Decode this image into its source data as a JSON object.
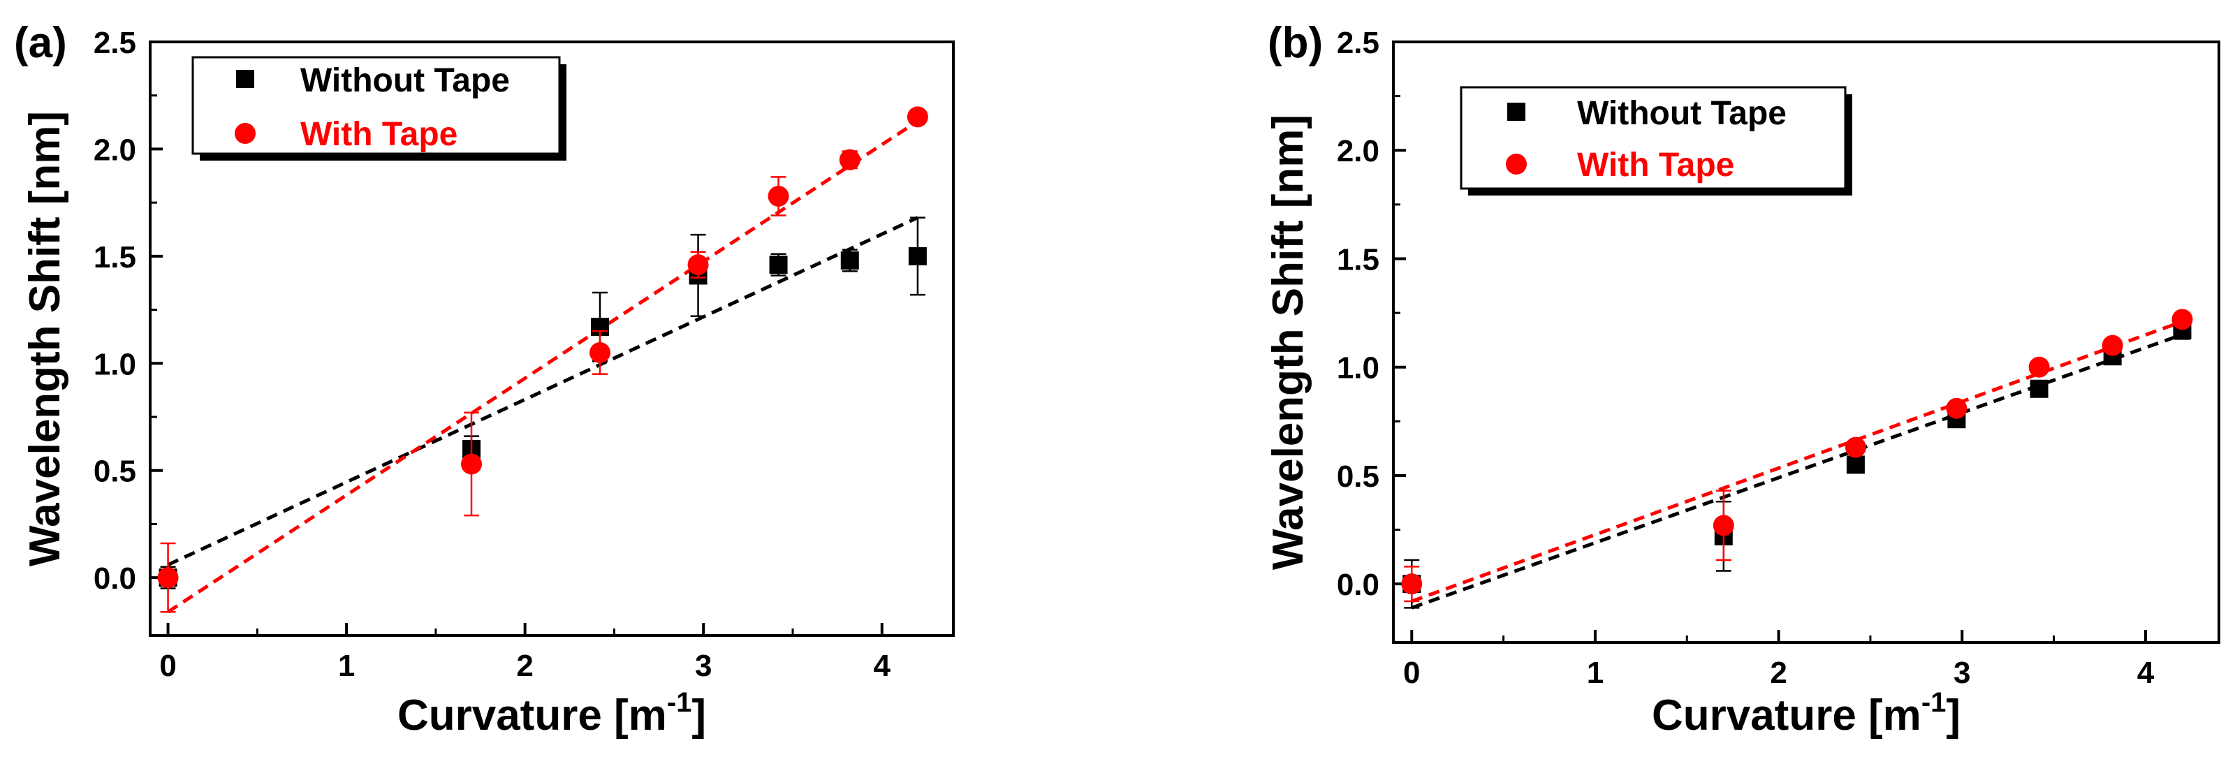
{
  "figure": {
    "description_labels": [
      "(a)",
      "(b)"
    ]
  },
  "chart_data": [
    {
      "type": "scatter",
      "panel_label": "(a)",
      "xlabel": "Curvature [m",
      "xlabel_sup": "-1",
      "xlabel_end": "]",
      "ylabel": "Wavelength Shift [nm]",
      "xlim": [
        -0.1,
        4.4
      ],
      "ylim": [
        -0.27,
        2.5
      ],
      "xticks": [
        0,
        1,
        2,
        3,
        4
      ],
      "xtick_labels": [
        "0",
        "1",
        "2",
        "3",
        "4"
      ],
      "yticks": [
        0.0,
        0.5,
        1.0,
        1.5,
        2.0,
        2.5
      ],
      "ytick_labels": [
        "0.0",
        "0.5",
        "1.0",
        "1.5",
        "2.0",
        "2.5"
      ],
      "legend_position": "top-left",
      "series": [
        {
          "name": "Without Tape",
          "marker": "square",
          "color": "#000000",
          "x": [
            0,
            1.7,
            2.42,
            2.97,
            3.42,
            3.82,
            4.2
          ],
          "y": [
            0.0,
            0.6,
            1.17,
            1.41,
            1.46,
            1.48,
            1.5
          ],
          "err": [
            0.05,
            0.06,
            0.16,
            0.19,
            0.05,
            0.05,
            0.18
          ],
          "fit": {
            "x0": 0,
            "y0": 0.06,
            "x1": 4.2,
            "y1": 1.68
          }
        },
        {
          "name": "With Tape",
          "marker": "circle",
          "color": "#ff0000",
          "x": [
            0,
            1.7,
            2.42,
            2.97,
            3.42,
            3.82,
            4.2
          ],
          "y": [
            0.0,
            0.53,
            1.05,
            1.46,
            1.78,
            1.95,
            2.15
          ],
          "err": [
            0.16,
            0.24,
            0.1,
            0.06,
            0.09,
            0.04,
            0.03
          ],
          "fit": {
            "x0": 0,
            "y0": -0.16,
            "x1": 4.2,
            "y1": 2.13
          }
        }
      ]
    },
    {
      "type": "scatter",
      "panel_label": "(b)",
      "xlabel": "Curvature [m",
      "xlabel_sup": "-1",
      "xlabel_end": "]",
      "ylabel": "Wavelength Shift [nm]",
      "xlim": [
        -0.1,
        4.4
      ],
      "ylim": [
        -0.27,
        2.5
      ],
      "xticks": [
        0,
        1,
        2,
        3,
        4
      ],
      "xtick_labels": [
        "0",
        "1",
        "2",
        "3",
        "4"
      ],
      "yticks": [
        0.0,
        0.5,
        1.0,
        1.5,
        2.0,
        2.5
      ],
      "ytick_labels": [
        "0.0",
        "0.5",
        "1.0",
        "1.5",
        "2.0",
        "2.5"
      ],
      "legend_position": "top-left",
      "series": [
        {
          "name": "Without Tape",
          "marker": "square",
          "color": "#000000",
          "x": [
            0,
            1.7,
            2.42,
            2.97,
            3.42,
            3.82,
            4.2
          ],
          "y": [
            0.0,
            0.22,
            0.55,
            0.76,
            0.9,
            1.05,
            1.17
          ],
          "err": [
            0.11,
            0.16,
            0.03,
            0.03,
            0.03,
            0.03,
            0.04
          ],
          "fit": {
            "x0": 0,
            "y0": -0.11,
            "x1": 4.2,
            "y1": 1.15
          }
        },
        {
          "name": "With Tape",
          "marker": "circle",
          "color": "#ff0000",
          "x": [
            0,
            1.7,
            2.42,
            2.97,
            3.42,
            3.82,
            4.2
          ],
          "y": [
            0.0,
            0.27,
            0.63,
            0.81,
            1.0,
            1.1,
            1.22
          ],
          "err": [
            0.08,
            0.16,
            0.03,
            0.03,
            0.03,
            0.03,
            0.03
          ],
          "fit": {
            "x0": 0,
            "y0": -0.08,
            "x1": 4.2,
            "y1": 1.21
          }
        }
      ]
    }
  ]
}
